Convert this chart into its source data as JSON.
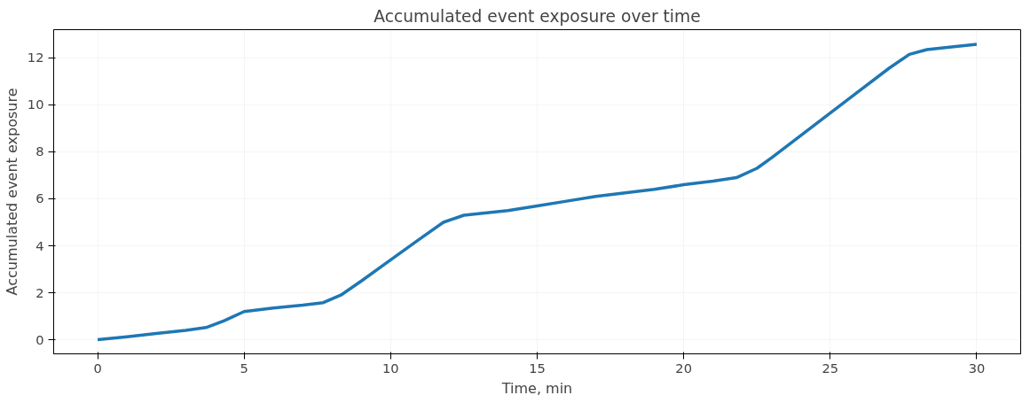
{
  "chart_data": {
    "type": "line",
    "title": "Accumulated event exposure over time",
    "xlabel": "Time, min",
    "ylabel": "Accumulated event exposure",
    "x": [
      0,
      1,
      2,
      3,
      3.7,
      4.3,
      5,
      6,
      7,
      7.7,
      8.3,
      9,
      10,
      11,
      11.8,
      12.5,
      14,
      15,
      16,
      17,
      18,
      19,
      20,
      21,
      21.8,
      22.5,
      23,
      24,
      25,
      26,
      27,
      27.7,
      28.3,
      29,
      30
    ],
    "series": [
      {
        "color": "#1f77b4",
        "values": [
          0,
          0.13,
          0.27,
          0.4,
          0.52,
          0.8,
          1.2,
          1.35,
          1.47,
          1.58,
          1.9,
          2.5,
          3.4,
          4.3,
          5.0,
          5.3,
          5.5,
          5.7,
          5.9,
          6.1,
          6.25,
          6.4,
          6.6,
          6.75,
          6.9,
          7.3,
          7.75,
          8.7,
          9.65,
          10.6,
          11.55,
          12.15,
          12.35,
          12.45,
          12.58
        ]
      }
    ],
    "xlim": [
      -1.5,
      31.5
    ],
    "ylim": [
      -0.6,
      13.2
    ],
    "xticks": [
      0,
      5,
      10,
      15,
      20,
      25,
      30
    ],
    "yticks": [
      0,
      2,
      4,
      6,
      8,
      10,
      12
    ],
    "grid": true,
    "marker": "none",
    "line_style": "solid"
  }
}
